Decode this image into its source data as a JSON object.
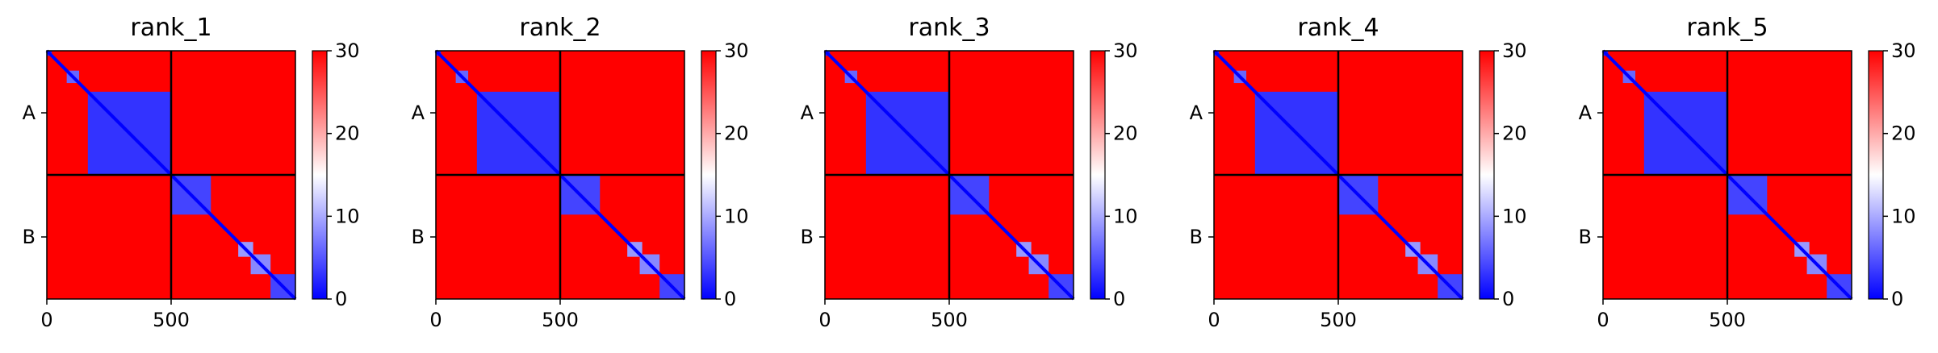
{
  "chart_data": {
    "type": "heatmap",
    "colormap": {
      "min_color": "#0000ff",
      "mid_color": "#ffffff",
      "max_color": "#ff0000"
    },
    "value_range": [
      0,
      30
    ],
    "colorbar_ticks": [
      "0",
      "10",
      "20",
      "30"
    ],
    "x_ticks": [
      {
        "value": 0,
        "label": "0"
      },
      {
        "value": 500,
        "label": "500"
      }
    ],
    "axis_max": 1000,
    "chain_boundary": 500,
    "chain_labels": [
      {
        "label": "A",
        "center": 250
      },
      {
        "label": "B",
        "center": 750
      }
    ],
    "panels": [
      {
        "title": "rank_1"
      },
      {
        "title": "rank_2"
      },
      {
        "title": "rank_3"
      },
      {
        "title": "rank_4"
      },
      {
        "title": "rank_5"
      }
    ],
    "low_error_domains": [
      {
        "start": 0,
        "end": 20,
        "value": 2
      },
      {
        "start": 80,
        "end": 130,
        "value": 6
      },
      {
        "start": 165,
        "end": 500,
        "value": 3
      },
      {
        "start": 500,
        "end": 660,
        "value": 4
      },
      {
        "start": 770,
        "end": 830,
        "value": 9
      },
      {
        "start": 820,
        "end": 900,
        "value": 8
      },
      {
        "start": 900,
        "end": 1000,
        "value": 4
      }
    ],
    "background_value": 30
  }
}
